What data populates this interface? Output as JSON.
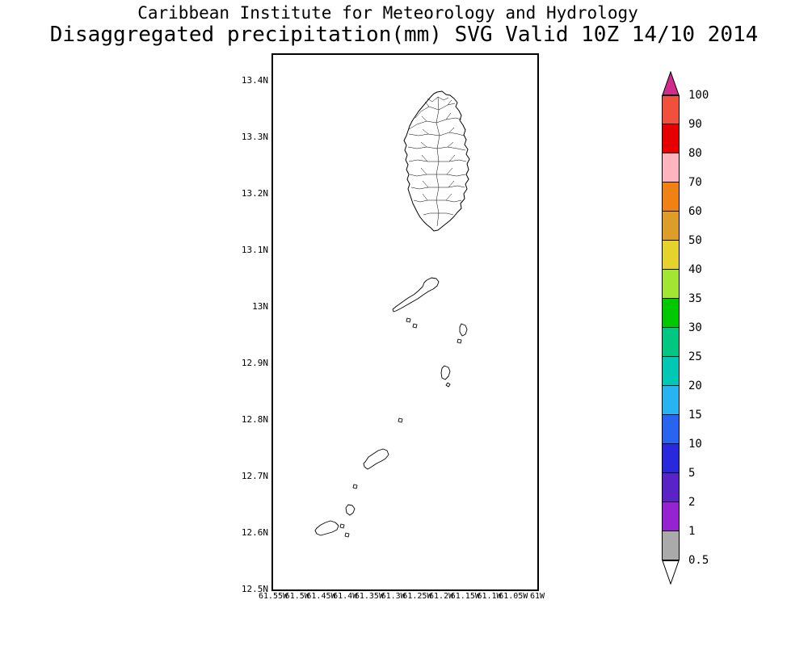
{
  "title": {
    "line1": "Caribbean Institute for Meteorology and Hydrology",
    "line2": "Disaggregated precipitation(mm) SVG Valid 10Z 14/10 2014"
  },
  "map": {
    "y_axis_labels": [
      "13.4N",
      "13.3N",
      "13.2N",
      "13.1N",
      "13N",
      "12.9N",
      "12.8N",
      "12.7N",
      "12.6N",
      "12.5N"
    ],
    "x_axis_labels": [
      "61.55W",
      "61.5W",
      "61.45W",
      "61.4W",
      "61.35W",
      "61.3W",
      "61.25W",
      "61.2W",
      "61.15W",
      "61.1W",
      "61.05W",
      "61W"
    ]
  },
  "colorbar": {
    "labels": [
      "100",
      "90",
      "80",
      "70",
      "60",
      "50",
      "40",
      "35",
      "30",
      "25",
      "20",
      "15",
      "10",
      "5",
      "2",
      "1",
      "0.5"
    ],
    "top_arrow_color": "#d02c8c",
    "bottom_arrow_color": "#ffffff",
    "band_colors": [
      "#f0503c",
      "#e60000",
      "#ffb4be",
      "#f08214",
      "#dc9e28",
      "#e6d22d",
      "#a0e632",
      "#00c800",
      "#00c882",
      "#00c8b4",
      "#28b4f0",
      "#2864f0",
      "#2828dc",
      "#5a23c8",
      "#9623d2",
      "#aaaaaa"
    ]
  },
  "chart_data": {
    "type": "heatmap",
    "title": "Disaggregated precipitation(mm) SVG Valid 10Z 14/10 2014",
    "subtitle": "Caribbean Institute for Meteorology and Hydrology",
    "xlabel": "",
    "ylabel": "",
    "x_ticks": [
      "61.55W",
      "61.5W",
      "61.45W",
      "61.4W",
      "61.35W",
      "61.3W",
      "61.25W",
      "61.2W",
      "61.15W",
      "61.1W",
      "61.05W",
      "61W"
    ],
    "y_ticks": [
      "13.4N",
      "13.3N",
      "13.2N",
      "13.1N",
      "13N",
      "12.9N",
      "12.8N",
      "12.7N",
      "12.6N",
      "12.5N"
    ],
    "legend_position": "right",
    "colorbar_levels_mm": [
      0.5,
      1,
      2,
      5,
      10,
      15,
      20,
      25,
      30,
      35,
      40,
      50,
      60,
      70,
      80,
      90,
      100
    ],
    "values_shaded": "none visible (map shows coastline outlines only, no precipitation shading)"
  }
}
